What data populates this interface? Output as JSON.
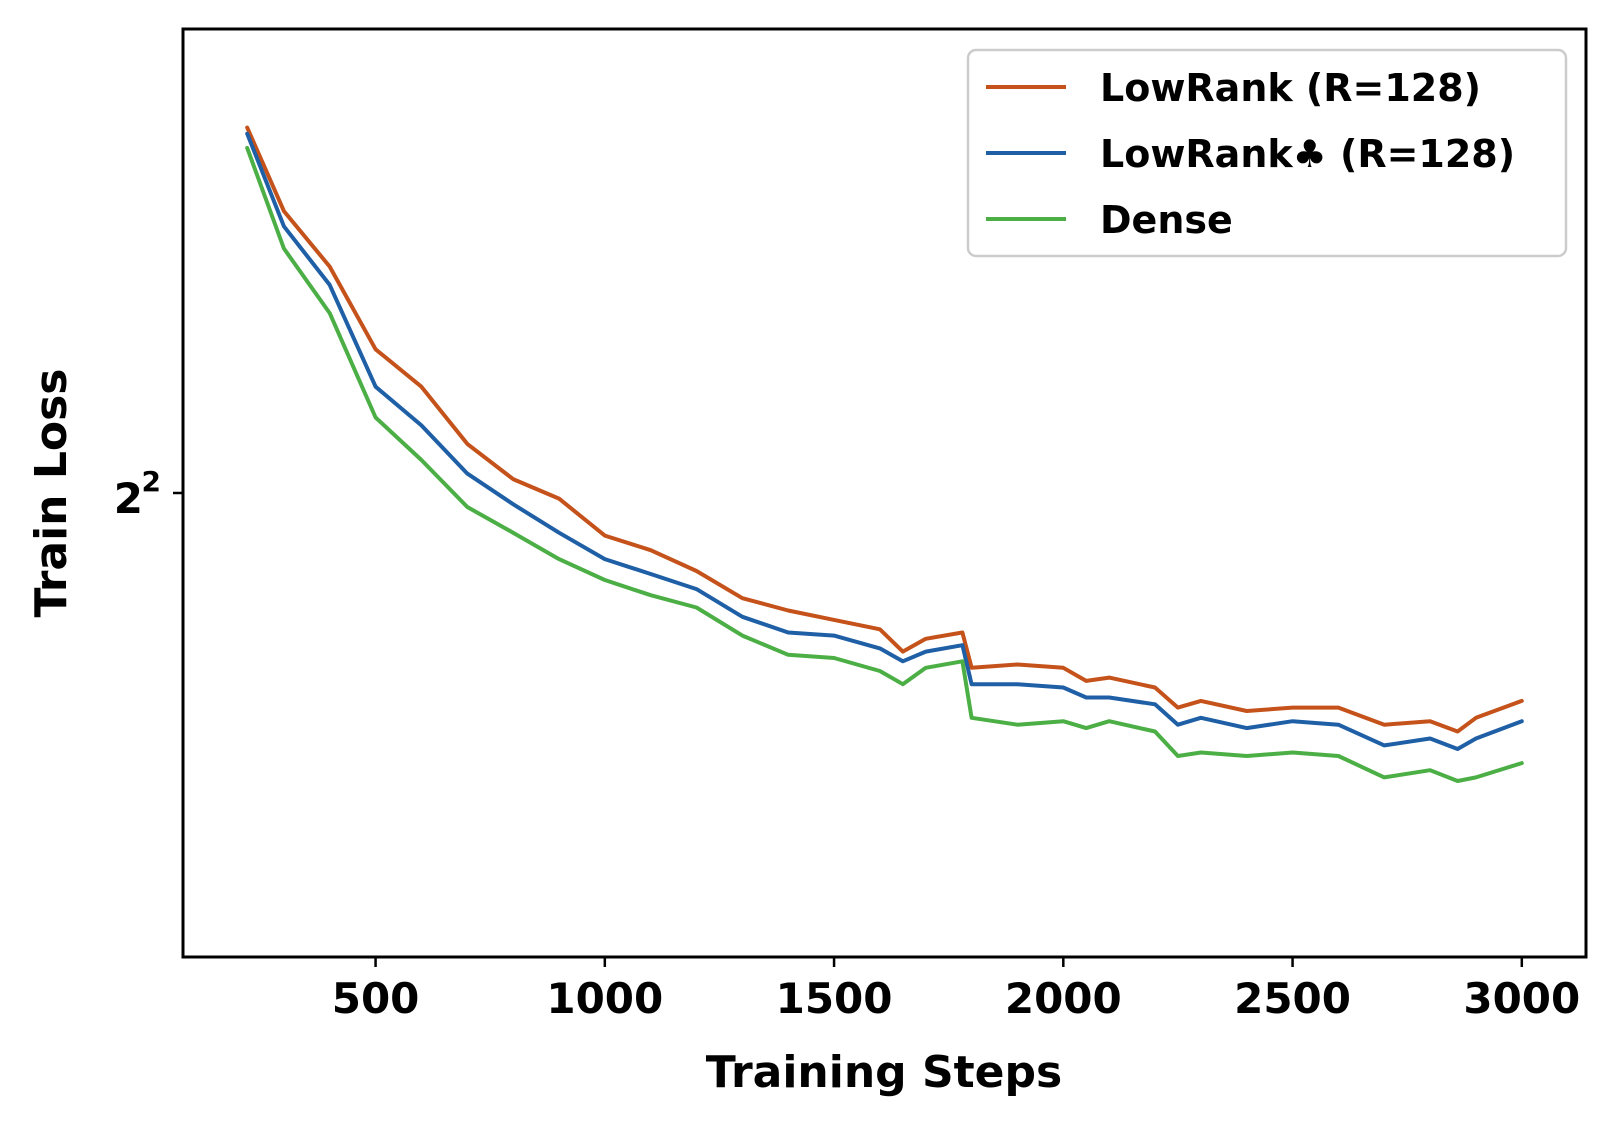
{
  "chart_data": {
    "type": "line",
    "xlabel": "Training Steps",
    "ylabel": "Train Loss",
    "y_scale": "log2",
    "xlim": [
      80,
      3140
    ],
    "ylim_log2": [
      1.4,
      2.6
    ],
    "x_ticks": [
      500,
      1000,
      1500,
      2000,
      2500,
      3000
    ],
    "x_tick_labels": [
      "500",
      "1000",
      "1500",
      "2000",
      "2500",
      "3000"
    ],
    "y_ticks": [
      {
        "value": 4,
        "base": "2",
        "exp": "2"
      }
    ],
    "legend_position": "top-right",
    "grid": false,
    "series": [
      {
        "name": "LowRank (R=128)",
        "color": "#c4521a",
        "x": [
          220,
          300,
          400,
          500,
          600,
          700,
          800,
          900,
          1000,
          1100,
          1200,
          1300,
          1400,
          1500,
          1600,
          1650,
          1700,
          1780,
          1800,
          1900,
          2000,
          2050,
          2100,
          2200,
          2250,
          2300,
          2400,
          2500,
          2600,
          2700,
          2800,
          2860,
          2900,
          3000
        ],
        "y": [
          5.55,
          5.15,
          4.9,
          4.55,
          4.4,
          4.18,
          4.05,
          3.98,
          3.85,
          3.8,
          3.73,
          3.64,
          3.6,
          3.57,
          3.54,
          3.47,
          3.51,
          3.53,
          3.42,
          3.43,
          3.42,
          3.38,
          3.39,
          3.36,
          3.3,
          3.32,
          3.29,
          3.3,
          3.3,
          3.25,
          3.26,
          3.23,
          3.27,
          3.32
        ]
      },
      {
        "name": "LowRank♣ (R=128)",
        "color": "#1f5fa6",
        "x": [
          220,
          300,
          400,
          500,
          600,
          700,
          800,
          900,
          1000,
          1100,
          1200,
          1300,
          1400,
          1500,
          1600,
          1650,
          1700,
          1780,
          1800,
          1900,
          2000,
          2050,
          2100,
          2200,
          2250,
          2300,
          2400,
          2500,
          2600,
          2700,
          2800,
          2860,
          2900,
          3000
        ],
        "y": [
          5.52,
          5.08,
          4.82,
          4.4,
          4.25,
          4.07,
          3.96,
          3.86,
          3.77,
          3.72,
          3.67,
          3.58,
          3.53,
          3.52,
          3.48,
          3.44,
          3.47,
          3.49,
          3.37,
          3.37,
          3.36,
          3.33,
          3.33,
          3.31,
          3.25,
          3.27,
          3.24,
          3.26,
          3.25,
          3.19,
          3.21,
          3.18,
          3.21,
          3.26
        ]
      },
      {
        "name": "Dense",
        "color": "#4caf45",
        "x": [
          220,
          300,
          400,
          500,
          600,
          700,
          800,
          900,
          1000,
          1100,
          1200,
          1300,
          1400,
          1500,
          1600,
          1650,
          1700,
          1780,
          1800,
          1900,
          2000,
          2050,
          2100,
          2200,
          2250,
          2300,
          2400,
          2500,
          2600,
          2700,
          2800,
          2860,
          2900,
          3000
        ],
        "y": [
          5.45,
          4.98,
          4.7,
          4.28,
          4.12,
          3.95,
          3.86,
          3.77,
          3.7,
          3.65,
          3.61,
          3.52,
          3.46,
          3.45,
          3.41,
          3.37,
          3.42,
          3.44,
          3.27,
          3.25,
          3.26,
          3.24,
          3.26,
          3.23,
          3.16,
          3.17,
          3.16,
          3.17,
          3.16,
          3.1,
          3.12,
          3.09,
          3.1,
          3.14
        ]
      }
    ]
  }
}
